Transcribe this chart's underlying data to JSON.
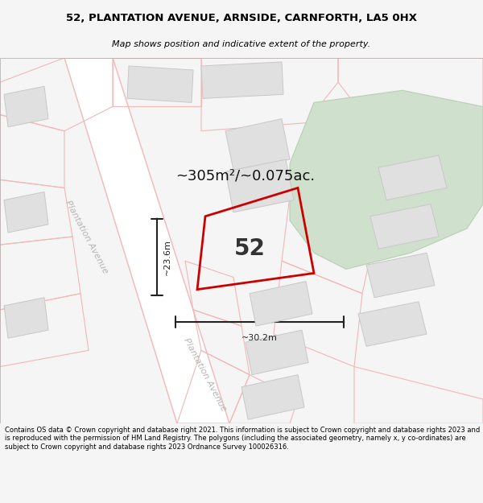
{
  "title_line1": "52, PLANTATION AVENUE, ARNSIDE, CARNFORTH, LA5 0HX",
  "title_line2": "Map shows position and indicative extent of the property.",
  "footer_text": "Contains OS data © Crown copyright and database right 2021. This information is subject to Crown copyright and database rights 2023 and is reproduced with the permission of HM Land Registry. The polygons (including the associated geometry, namely x, y co-ordinates) are subject to Crown copyright and database rights 2023 Ordnance Survey 100026316.",
  "area_label": "~305m²/~0.075ac.",
  "number_label": "52",
  "dim_vertical": "~23.6m",
  "dim_horizontal": "~30.2m",
  "bg_color": "#f5f5f5",
  "map_bg": "#ffffff",
  "parcel_color": "#f0b8b8",
  "building_fill": "#e0e0e0",
  "building_edge": "#c8c8c8",
  "green_fill": "#cfe0cc",
  "green_edge": "#b8cfb5",
  "property_edge": "#cc0000",
  "road_label_color": "#aaaaaa",
  "street_label": "Plantation Avenue"
}
